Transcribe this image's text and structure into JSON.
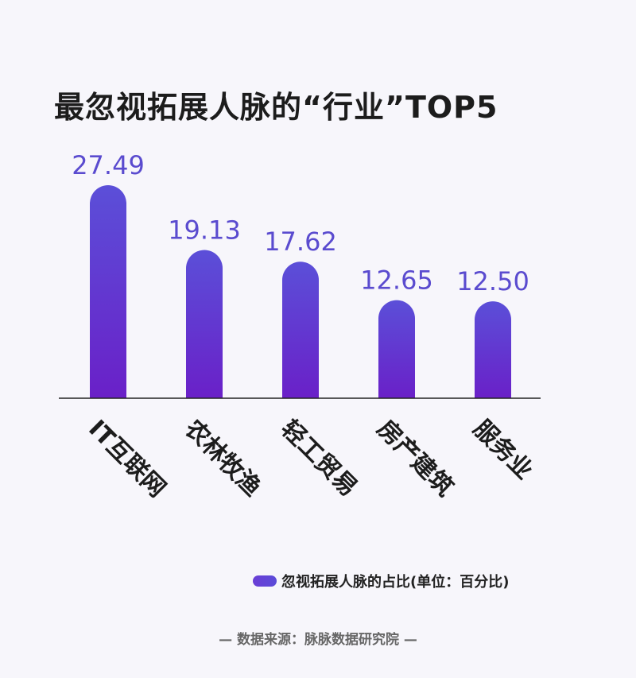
{
  "title": "最忽视拓展人脉的“行业”TOP5",
  "legend": {
    "label": "忽视拓展人脉的占比(单位：百分比)"
  },
  "source": "— 数据来源：脉脉数据研究院 —",
  "colors": {
    "bar_top": "#5b4fd8",
    "bar_bottom": "#6a20c8",
    "value_label": "#5a4bcf",
    "axis": "#222222"
  },
  "chart_data": {
    "type": "bar",
    "title": "最忽视拓展人脉的“行业”TOP5",
    "categories": [
      "IT互联网",
      "农林牧渔",
      "轻工贸易",
      "房产建筑",
      "服务业"
    ],
    "series": [
      {
        "name": "忽视拓展人脉的占比(单位：百分比)",
        "values": [
          27.49,
          19.13,
          17.62,
          12.65,
          12.5
        ]
      }
    ],
    "value_labels": [
      "27.49",
      "19.13",
      "17.62",
      "12.65",
      "12.50"
    ],
    "grid": false,
    "legend_position": "bottom-right"
  }
}
